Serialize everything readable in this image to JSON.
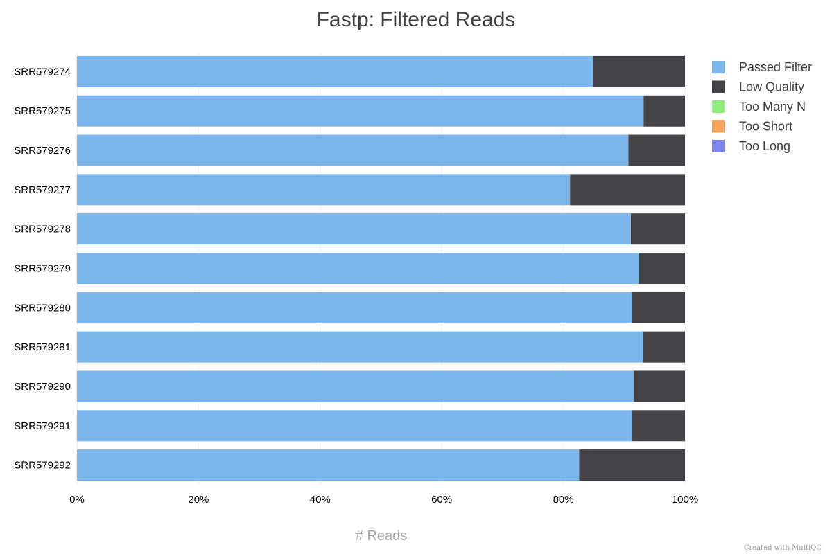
{
  "chart_data": {
    "type": "bar",
    "orientation": "horizontal",
    "stacked": true,
    "title": "Fastp: Filtered Reads",
    "xlabel": "# Reads",
    "ylabel": "",
    "xlim": [
      0,
      100
    ],
    "x_ticks": [
      "0%",
      "20%",
      "40%",
      "60%",
      "80%",
      "100%"
    ],
    "categories": [
      "SRR579274",
      "SRR579275",
      "SRR579276",
      "SRR579277",
      "SRR579278",
      "SRR579279",
      "SRR579280",
      "SRR579281",
      "SRR579290",
      "SRR579291",
      "SRR579292"
    ],
    "series": [
      {
        "name": "Passed Filter",
        "color": "#7cb5ec",
        "values": [
          84.9,
          93.2,
          90.7,
          81.1,
          91.1,
          92.4,
          91.3,
          93.1,
          91.6,
          91.3,
          82.6
        ]
      },
      {
        "name": "Low Quality",
        "color": "#434348",
        "values": [
          15.1,
          6.8,
          9.3,
          18.9,
          8.9,
          7.6,
          8.7,
          6.9,
          8.4,
          8.7,
          17.4
        ]
      },
      {
        "name": "Too Many N",
        "color": "#90ed7d",
        "values": [
          0,
          0,
          0,
          0,
          0,
          0,
          0,
          0,
          0,
          0,
          0
        ]
      },
      {
        "name": "Too Short",
        "color": "#f7a35c",
        "values": [
          0,
          0,
          0,
          0,
          0,
          0,
          0,
          0,
          0,
          0,
          0
        ]
      },
      {
        "name": "Too Long",
        "color": "#8085e9",
        "values": [
          0,
          0,
          0,
          0,
          0,
          0,
          0,
          0,
          0,
          0,
          0
        ]
      }
    ],
    "grid": true,
    "legend_position": "right"
  },
  "footer": {
    "credit": "Created with MultiQC"
  }
}
